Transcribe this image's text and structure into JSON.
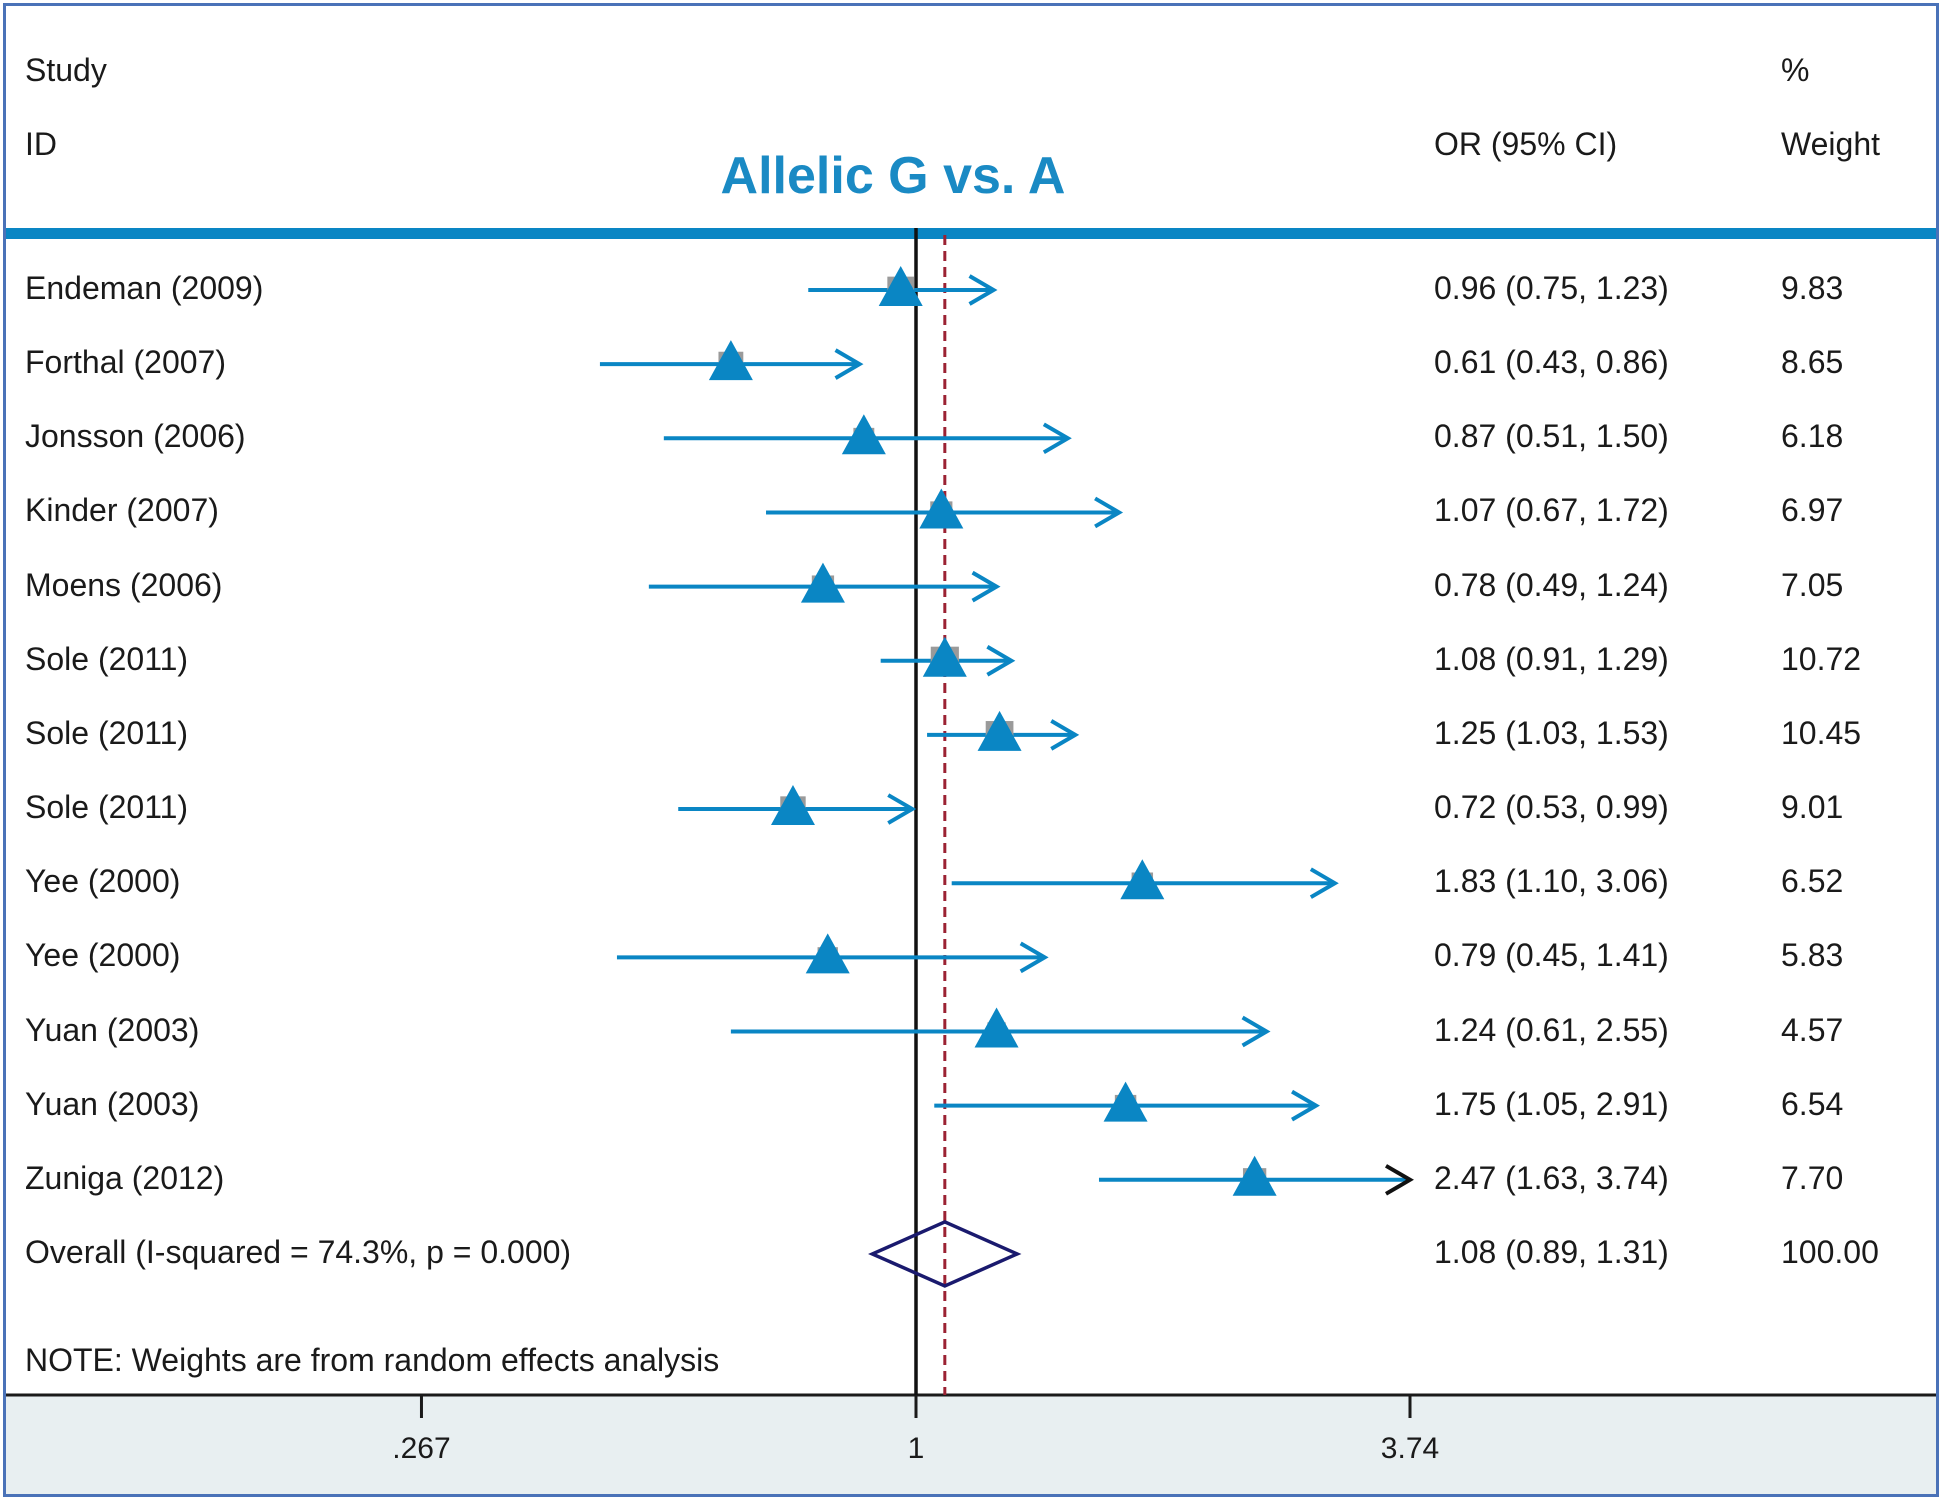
{
  "header": {
    "study_label": "Study",
    "id_label": "ID",
    "or_label": "OR (95% CI)",
    "pct_label": "%",
    "weight_label": "Weight"
  },
  "note": "NOTE: Weights are from random effects analysis",
  "colors": {
    "accent": "#0a86c4",
    "diamond": "#1a1a6e",
    "dashed_line": "#9b2233",
    "frame": "#4a72b8",
    "axis_panel": "#e8eff1"
  },
  "chart_data": {
    "type": "forest",
    "title": "Allelic G vs. A",
    "x_scale": "log",
    "x_ticks": [
      {
        "value": 0.267,
        "label": ".267"
      },
      {
        "value": 1,
        "label": "1"
      },
      {
        "value": 3.74,
        "label": "3.74"
      }
    ],
    "null_line": 1,
    "pooled_line": 1.08,
    "studies": [
      {
        "id": "Endeman (2009)",
        "or": 0.96,
        "lo": 0.75,
        "hi": 1.23,
        "ci_text": "0.96 (0.75, 1.23)",
        "weight": "9.83"
      },
      {
        "id": "Forthal (2007)",
        "or": 0.61,
        "lo": 0.43,
        "hi": 0.86,
        "ci_text": "0.61 (0.43, 0.86)",
        "weight": "8.65"
      },
      {
        "id": "Jonsson (2006)",
        "or": 0.87,
        "lo": 0.51,
        "hi": 1.5,
        "ci_text": "0.87 (0.51, 1.50)",
        "weight": "6.18"
      },
      {
        "id": "Kinder (2007)",
        "or": 1.07,
        "lo": 0.67,
        "hi": 1.72,
        "ci_text": "1.07 (0.67, 1.72)",
        "weight": "6.97"
      },
      {
        "id": "Moens (2006)",
        "or": 0.78,
        "lo": 0.49,
        "hi": 1.24,
        "ci_text": "0.78 (0.49, 1.24)",
        "weight": "7.05"
      },
      {
        "id": "Sole (2011)",
        "or": 1.08,
        "lo": 0.91,
        "hi": 1.29,
        "ci_text": "1.08 (0.91, 1.29)",
        "weight": "10.72"
      },
      {
        "id": "Sole (2011)",
        "or": 1.25,
        "lo": 1.03,
        "hi": 1.53,
        "ci_text": "1.25 (1.03, 1.53)",
        "weight": "10.45"
      },
      {
        "id": "Sole (2011)",
        "or": 0.72,
        "lo": 0.53,
        "hi": 0.99,
        "ci_text": "0.72 (0.53, 0.99)",
        "weight": "9.01"
      },
      {
        "id": "Yee (2000)",
        "or": 1.83,
        "lo": 1.1,
        "hi": 3.06,
        "ci_text": "1.83 (1.10, 3.06)",
        "weight": "6.52"
      },
      {
        "id": "Yee (2000)",
        "or": 0.79,
        "lo": 0.45,
        "hi": 1.41,
        "ci_text": "0.79 (0.45, 1.41)",
        "weight": "5.83"
      },
      {
        "id": "Yuan (2003)",
        "or": 1.24,
        "lo": 0.61,
        "hi": 2.55,
        "ci_text": "1.24 (0.61, 2.55)",
        "weight": "4.57"
      },
      {
        "id": "Yuan (2003)",
        "or": 1.75,
        "lo": 1.05,
        "hi": 2.91,
        "ci_text": "1.75 (1.05, 2.91)",
        "weight": "6.54"
      },
      {
        "id": "Zuniga (2012)",
        "or": 2.47,
        "lo": 1.63,
        "hi": 3.74,
        "ci_text": "2.47 (1.63, 3.74)",
        "weight": "7.70"
      }
    ],
    "overall": {
      "id": "Overall  (I-squared = 74.3%, p = 0.000)",
      "or": 1.08,
      "lo": 0.89,
      "hi": 1.31,
      "ci_text": "1.08 (0.89, 1.31)",
      "weight": "100.00"
    }
  }
}
